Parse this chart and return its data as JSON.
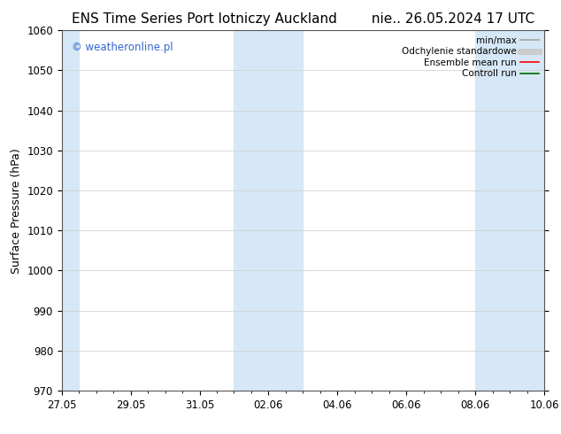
{
  "title_left": "ENS Time Series Port lotniczy Auckland",
  "title_right": "nie.. 26.05.2024 17 UTC",
  "ylabel": "Surface Pressure (hPa)",
  "ylim": [
    970,
    1060
  ],
  "yticks": [
    970,
    980,
    990,
    1000,
    1010,
    1020,
    1030,
    1040,
    1050,
    1060
  ],
  "xtick_labels": [
    "27.05",
    "29.05",
    "31.05",
    "02.06",
    "04.06",
    "06.06",
    "08.06",
    "10.06"
  ],
  "xtick_positions": [
    0,
    2,
    4,
    6,
    8,
    10,
    12,
    14
  ],
  "xlim": [
    0,
    14
  ],
  "shaded_bands": [
    {
      "x_start": 5.0,
      "x_end": 7.0
    },
    {
      "x_start": 12.0,
      "x_end": 14.0
    }
  ],
  "left_edge_shade": {
    "x_start": 0.0,
    "x_end": 0.5
  },
  "shaded_color": "#d6e8f7",
  "background_color": "#ffffff",
  "watermark_text": "© weatheronline.pl",
  "watermark_color": "#3366cc",
  "legend_items": [
    {
      "label": "min/max",
      "color": "#b0b0b0",
      "lw": 1.5
    },
    {
      "label": "Odchylenie standardowe",
      "color": "#cccccc",
      "lw": 5
    },
    {
      "label": "Ensemble mean run",
      "color": "#ff0000",
      "lw": 1.2
    },
    {
      "label": "Controll run",
      "color": "#006600",
      "lw": 1.2
    }
  ],
  "grid_color": "#cccccc",
  "spine_color": "#555555",
  "title_fontsize": 11,
  "ylabel_fontsize": 9,
  "tick_fontsize": 8.5,
  "watermark_fontsize": 8.5,
  "legend_fontsize": 7.5
}
